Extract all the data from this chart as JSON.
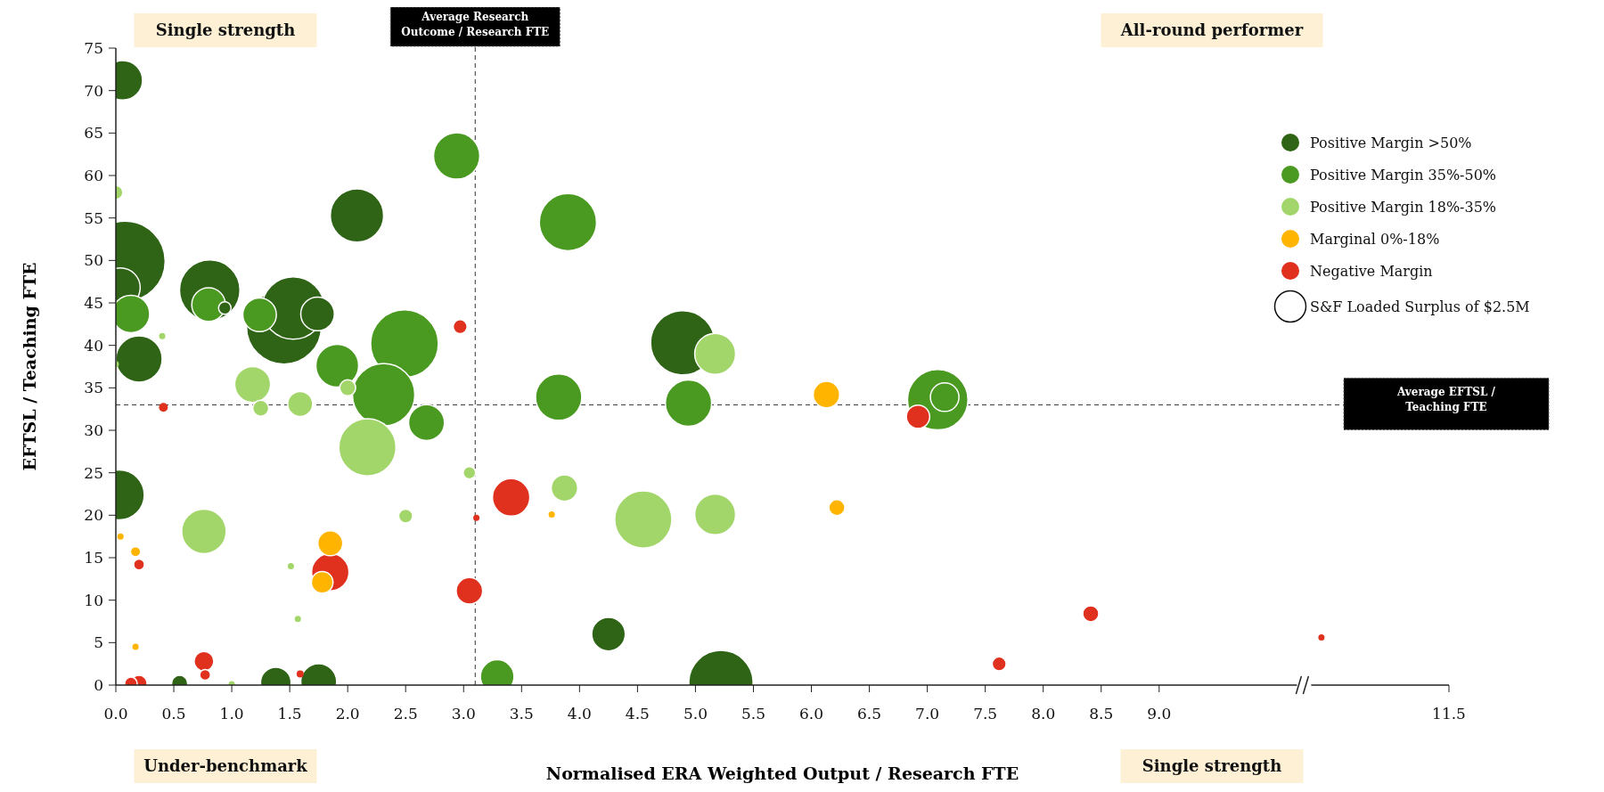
{
  "chart_data": {
    "type": "bubble",
    "xlabel": "Normalised ERA Weighted Output / Research FTE",
    "ylabel": "EFTSL / Teaching FTE",
    "xlim": [
      0,
      11.5
    ],
    "xticks": [
      {
        "value": 0,
        "label": "0.0"
      },
      {
        "value": 0.5,
        "label": "0.5"
      },
      {
        "value": 1,
        "label": "1.0"
      },
      {
        "value": 1.5,
        "label": "1.5"
      },
      {
        "value": 2,
        "label": "2.0"
      },
      {
        "value": 2.5,
        "label": "2.5"
      },
      {
        "value": 3,
        "label": "3.0"
      },
      {
        "value": 3.5,
        "label": "3.5"
      },
      {
        "value": 4,
        "label": "4.0"
      },
      {
        "value": 4.5,
        "label": "4.5"
      },
      {
        "value": 5,
        "label": "5.0"
      },
      {
        "value": 5.5,
        "label": "5.5"
      },
      {
        "value": 6,
        "label": "6.0"
      },
      {
        "value": 6.5,
        "label": "6.5"
      },
      {
        "value": 7,
        "label": "7.0"
      },
      {
        "value": 7.5,
        "label": "7.5"
      },
      {
        "value": 8,
        "label": "8.0"
      },
      {
        "value": 8.5,
        "label": "8.5"
      },
      {
        "value": 9,
        "label": "9.0"
      },
      11.5
    ],
    "ylim": [
      0,
      75
    ],
    "yticks": [
      0,
      5,
      10,
      15,
      20,
      25,
      30,
      35,
      40,
      45,
      50,
      55,
      60,
      65,
      70,
      75
    ],
    "legend": "top right",
    "size_legend": [
      {
        "value": 2.5,
        "label": "S&F Loaded Surplus of $2.5M"
      }
    ],
    "ref_lines": [
      {
        "axis": "x",
        "value": 3.1,
        "label": "Average Research Outcome / Research FTE",
        "line_style": "dashed"
      },
      {
        "axis": "y",
        "value": 33,
        "label": "Average EFTSL / Teaching FTE",
        "line_style": "dashed"
      }
    ],
    "annotations": [
      "Single strength",
      "All-round performer",
      "Under-benchmark",
      "Single strength"
    ],
    "series": [
      {
        "name": "Positive Margin >50%",
        "color": "#2f6416",
        "x": [
          0.06,
          0.08,
          0.04,
          0.2,
          0.81,
          0.94,
          1.45,
          1.53,
          1.74,
          2.08,
          0.03,
          0.55,
          1.38,
          1.75,
          4.89,
          4.25,
          5.22
        ],
        "values": [
          71.2,
          49.9,
          46.8,
          38.4,
          46.5,
          44.4,
          42.2,
          44.4,
          43.7,
          55.3,
          22.4,
          0.2,
          0.3,
          0.4,
          40.3,
          6,
          0.3
        ],
        "sizes": [
          4,
          16.5,
          4,
          5.5,
          9.4,
          0.4,
          14.4,
          10,
          2.9,
          7.3,
          6.4,
          0.66,
          2.4,
          3.3,
          10.6,
          2.9,
          10.6
        ]
      },
      {
        "name": "Positive Margin 35%-50%",
        "color": "#4a9a21",
        "x": [
          0.13,
          0.8,
          1.24,
          2.94,
          2.49,
          1.91,
          2.31,
          2.68,
          3.9,
          3.82,
          4.94,
          3.29,
          7.09,
          7.15
        ],
        "values": [
          43.7,
          44.8,
          43.6,
          62.3,
          40.2,
          37.6,
          34.2,
          30.9,
          54.5,
          33.9,
          33.2,
          1,
          33.6,
          33.9
        ],
        "sizes": [
          3.6,
          2.9,
          2.9,
          5.5,
          11.8,
          4.7,
          10,
          3.3,
          8.4,
          5.5,
          5.5,
          2.9,
          9.4,
          2.1
        ]
      },
      {
        "name": "Positive Margin 18%-35%",
        "color": "#a3d66a",
        "x": [
          0,
          0.4,
          0,
          2,
          1.18,
          1.59,
          1.25,
          2.17,
          3.05,
          0.76,
          2.5,
          1.51,
          1.57,
          1,
          5.17,
          3.87,
          4.55,
          5.17
        ],
        "values": [
          58,
          41.1,
          37.8,
          35,
          35.4,
          33.1,
          32.6,
          28,
          25,
          18.1,
          19.9,
          14,
          7.8,
          0.1,
          39,
          23.2,
          19.5,
          20.1
        ],
        "sizes": [
          0.5,
          0.1,
          0.1,
          0.66,
          3.3,
          1.6,
          0.66,
          8.4,
          0.4,
          5.1,
          0.5,
          0.1,
          0.1,
          0.1,
          4.3,
          1.8,
          8.4,
          4.3
        ]
      },
      {
        "name": "Marginal 0%-18%",
        "color": "#ffb400",
        "x": [
          0.04,
          0.17,
          1.85,
          1.78,
          0.17,
          6.13,
          3.76,
          6.22
        ],
        "values": [
          17.5,
          15.7,
          16.7,
          12.1,
          4.5,
          34.2,
          20.1,
          20.9
        ],
        "sizes": [
          0.1,
          0.2,
          1.6,
          1.2,
          0.1,
          1.8,
          0.1,
          0.66
        ]
      },
      {
        "name": "Negative Margin",
        "color": "#e0301e",
        "x": [
          2.97,
          0.41,
          3.11,
          0.2,
          1.85,
          3.05,
          0.76,
          0.77,
          0.13,
          0.2,
          1.59,
          3.41,
          6.92,
          8.41,
          7.62,
          10.4
        ],
        "values": [
          42.2,
          32.7,
          19.7,
          14.2,
          13.3,
          11.1,
          2.8,
          1.2,
          0.2,
          0.2,
          1.3,
          22.1,
          31.6,
          8.4,
          2.5,
          5.6
        ],
        "sizes": [
          0.5,
          0.2,
          0.1,
          0.3,
          3.6,
          1.8,
          1,
          0.3,
          0.4,
          0.66,
          0.13,
          3.6,
          1.4,
          0.66,
          0.5,
          0.1
        ]
      }
    ]
  }
}
